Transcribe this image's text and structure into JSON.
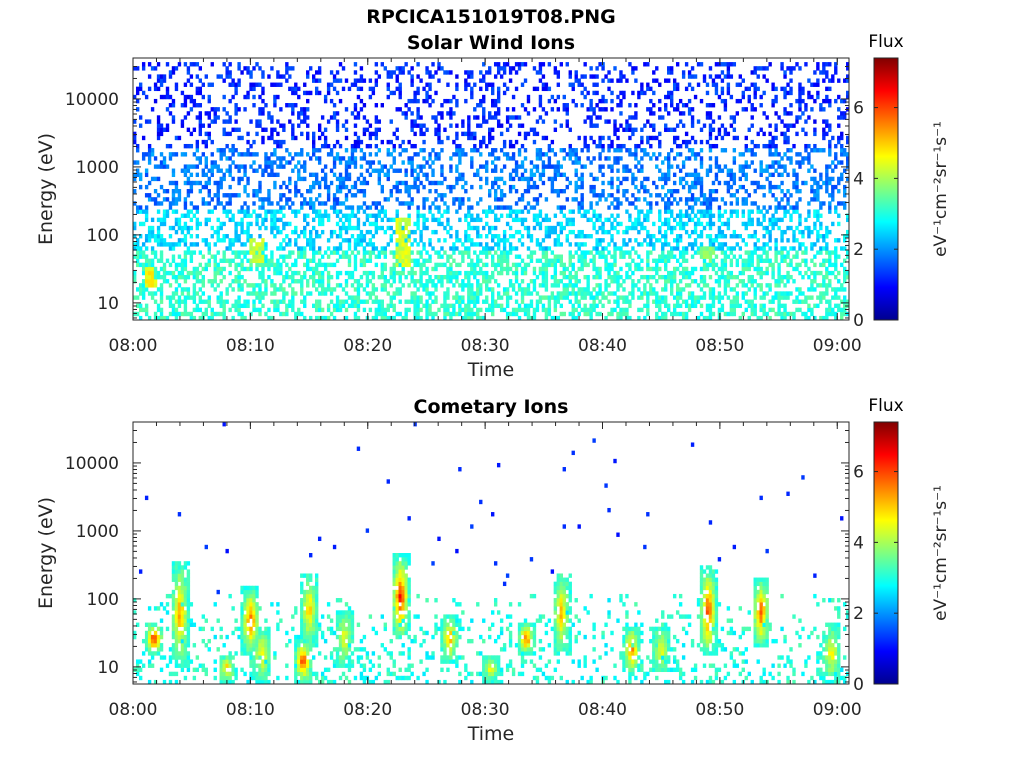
{
  "figure": {
    "filename": "RPCICA151019T08.PNG"
  },
  "colors": {
    "background": "#ffffff",
    "axes": "#262626"
  },
  "chart_data": [
    {
      "type": "heatmap",
      "title": "Solar Wind Ions",
      "xlabel": "Time",
      "ylabel": "Energy (eV)",
      "x_range": [
        "08:00",
        "09:01"
      ],
      "x_ticks": [
        "08:00",
        "08:10",
        "08:20",
        "08:30",
        "08:40",
        "08:50",
        "09:00"
      ],
      "y_scale": "log",
      "ylim": [
        5.6,
        40000
      ],
      "y_ticks": [
        10,
        100,
        1000,
        10000
      ],
      "y_tick_labels": [
        "10",
        "100",
        "1000",
        "10000"
      ],
      "colorbar": {
        "title": "Flux",
        "label": "eV⁻¹cm⁻²sr⁻¹s⁻¹",
        "range": [
          0,
          7.4
        ],
        "ticks": [
          0,
          2,
          4,
          6
        ],
        "tick_labels": [
          "0",
          "2",
          "4",
          "6"
        ],
        "colormap": "jet"
      },
      "grid": false,
      "description_values": {
        "bands": [
          {
            "energy_range_eV": [
              5.6,
              60
            ],
            "flux": 3.1
          },
          {
            "energy_range_eV": [
              60,
              250
            ],
            "flux": 2.5
          },
          {
            "energy_range_eV": [
              250,
              2000
            ],
            "flux": 1.8
          },
          {
            "energy_range_eV": [
              2000,
              35000
            ],
            "flux": 1.2
          }
        ],
        "enhancements": [
          {
            "time": "08:01.5",
            "energy_range_eV": [
              18,
              35
            ],
            "flux": 4.6
          },
          {
            "time": "08:10.5",
            "energy_range_eV": [
              40,
              90
            ],
            "flux": 4.2
          },
          {
            "time": "08:23",
            "energy_range_eV": [
              35,
              180
            ],
            "flux": 4.3
          },
          {
            "time": "08:49",
            "energy_range_eV": [
              40,
              70
            ],
            "flux": 3.8
          }
        ]
      }
    },
    {
      "type": "heatmap",
      "title": "Cometary Ions",
      "xlabel": "Time",
      "ylabel": "Energy (eV)",
      "x_range": [
        "08:00",
        "09:01"
      ],
      "x_ticks": [
        "08:00",
        "08:10",
        "08:20",
        "08:30",
        "08:40",
        "08:50",
        "09:00"
      ],
      "y_scale": "log",
      "ylim": [
        5.6,
        40000
      ],
      "y_ticks": [
        10,
        100,
        1000,
        10000
      ],
      "y_tick_labels": [
        "10",
        "100",
        "1000",
        "10000"
      ],
      "colorbar": {
        "title": "Flux",
        "label": "eV⁻¹cm⁻²sr⁻¹s⁻¹",
        "range": [
          0,
          7.4
        ],
        "ticks": [
          0,
          2,
          4,
          6
        ],
        "tick_labels": [
          "0",
          "2",
          "4",
          "6"
        ],
        "colormap": "jet"
      },
      "grid": false,
      "description_values": {
        "bursts": [
          {
            "time": "08:01.8",
            "energy_range_eV": [
              15,
              45
            ],
            "peak_flux": 6.8
          },
          {
            "time": "08:04",
            "energy_range_eV": [
              10,
              350
            ],
            "peak_flux": 5.6
          },
          {
            "time": "08:08",
            "energy_range_eV": [
              6,
              15
            ],
            "peak_flux": 5.2
          },
          {
            "time": "08:10",
            "energy_range_eV": [
              15,
              150
            ],
            "peak_flux": 6.2
          },
          {
            "time": "08:11",
            "energy_range_eV": [
              6,
              40
            ],
            "peak_flux": 5.0
          },
          {
            "time": "08:14.5",
            "energy_range_eV": [
              6,
              25
            ],
            "peak_flux": 6.5
          },
          {
            "time": "08:15",
            "energy_range_eV": [
              20,
              250
            ],
            "peak_flux": 5.2
          },
          {
            "time": "08:18",
            "energy_range_eV": [
              10,
              70
            ],
            "peak_flux": 4.8
          },
          {
            "time": "08:22.8",
            "energy_range_eV": [
              25,
              450
            ],
            "peak_flux": 6.7
          },
          {
            "time": "08:27",
            "energy_range_eV": [
              12,
              60
            ],
            "peak_flux": 5.5
          },
          {
            "time": "08:30.5",
            "energy_range_eV": [
              6,
              15
            ],
            "peak_flux": 4.8
          },
          {
            "time": "08:33.5",
            "energy_range_eV": [
              15,
              45
            ],
            "peak_flux": 6.0
          },
          {
            "time": "08:36.5",
            "energy_range_eV": [
              15,
              250
            ],
            "peak_flux": 5.3
          },
          {
            "time": "08:42.5",
            "energy_range_eV": [
              8,
              40
            ],
            "peak_flux": 5.8
          },
          {
            "time": "08:45",
            "energy_range_eV": [
              8,
              40
            ],
            "peak_flux": 4.8
          },
          {
            "time": "08:49",
            "energy_range_eV": [
              15,
              300
            ],
            "peak_flux": 6.4
          },
          {
            "time": "08:53.5",
            "energy_range_eV": [
              20,
              200
            ],
            "peak_flux": 6.1
          },
          {
            "time": "08:59.5",
            "energy_range_eV": [
              6,
              45
            ],
            "peak_flux": 4.9
          }
        ],
        "background": {
          "energy_range_eV": [
            5.6,
            120
          ],
          "flux": 3.0
        }
      }
    }
  ]
}
